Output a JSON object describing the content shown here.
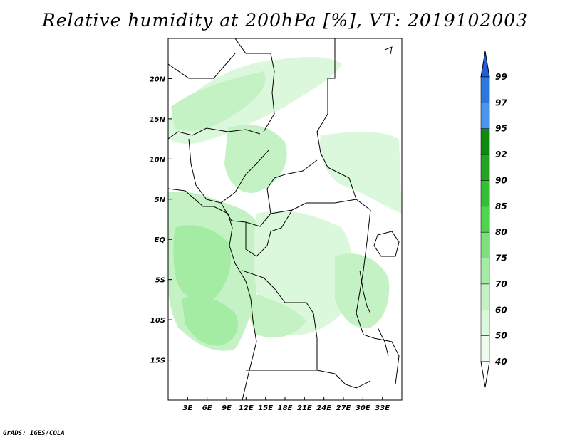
{
  "title": "Relative humidity at 200hPa [%], VT: 2019102003",
  "credit": "GrADS: IGES/COLA",
  "map": {
    "lon_range": [
      0,
      36
    ],
    "lat_range": [
      -20,
      25
    ],
    "lon_ticks": [
      "3E",
      "6E",
      "9E",
      "12E",
      "15E",
      "18E",
      "21E",
      "24E",
      "27E",
      "30E",
      "33E"
    ],
    "lat_ticks": [
      "20N",
      "15N",
      "10N",
      "5N",
      "EQ",
      "5S",
      "10S",
      "15S"
    ]
  },
  "colorbar": {
    "levels": [
      "99",
      "97",
      "95",
      "92",
      "90",
      "85",
      "80",
      "75",
      "70",
      "60",
      "50",
      "40"
    ],
    "colors": [
      "#1f5fd6",
      "#2a78e0",
      "#4a96ee",
      "#0f8a0f",
      "#22a322",
      "#33c033",
      "#4ed44e",
      "#7ce07c",
      "#a4eca4",
      "#c4f2c4",
      "#dcf8dc",
      "#eefcee"
    ]
  }
}
